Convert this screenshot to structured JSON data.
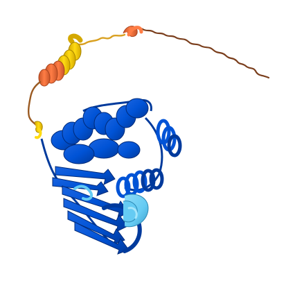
{
  "image": {
    "subject": "protein-structure-cartoon"
  },
  "colors": {
    "background": "#ffffff",
    "very_high": "#0053d6",
    "very_high_dark": "#003a9c",
    "confident": "#65cbf3",
    "low": "#ffdb13",
    "low_dark": "#d4a800",
    "very_low": "#ff7d45",
    "very_low_dark": "#c8552a",
    "coil_low": "#8a4a24"
  }
}
